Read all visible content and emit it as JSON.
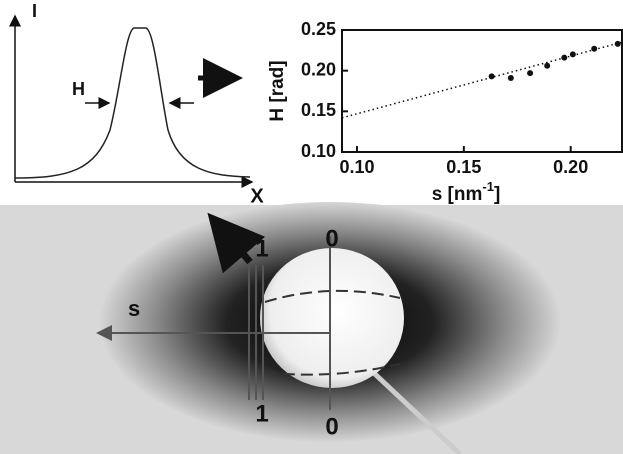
{
  "chart_data": {
    "type": "scatter",
    "x": [
      0.163,
      0.172,
      0.181,
      0.189,
      0.197,
      0.201,
      0.211,
      0.222
    ],
    "values": [
      0.193,
      0.191,
      0.197,
      0.206,
      0.216,
      0.22,
      0.227,
      0.233
    ],
    "color": "#111111",
    "fit": {
      "x": [
        0.093,
        0.224
      ],
      "values": [
        0.142,
        0.235
      ]
    },
    "xlim": [
      0.093,
      0.224
    ],
    "ylim": [
      0.1,
      0.25
    ],
    "xticks": [
      {
        "value": 0.1,
        "label": "0.10"
      },
      0.15,
      {
        "value": 0.2,
        "label": "0.20"
      }
    ],
    "yticks": [
      {
        "value": 0.1,
        "label": "0.10"
      },
      0.15,
      {
        "value": 0.2,
        "label": "0.20"
      },
      0.25
    ],
    "ylabel": "H [rad]",
    "xlabel": [
      "s [nm",
      "-1",
      "]"
    ]
  },
  "profile": {
    "y_axis": "I",
    "x_axis": "X",
    "width": "H"
  },
  "pattern": {
    "direction": "s",
    "inner_top": "1",
    "inner_bottom": "1",
    "center_top": "0",
    "center_bottom": "0"
  }
}
